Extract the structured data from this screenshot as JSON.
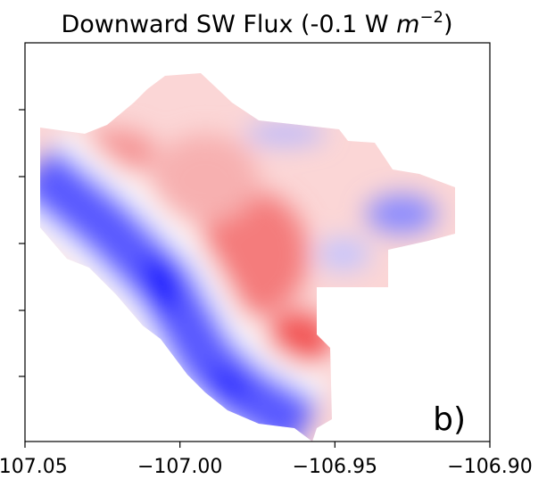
{
  "chart_data": {
    "type": "contour",
    "title": {
      "text": "Downward SW Flux (-0.1 W ",
      "unit": "m",
      "exponent": "−2",
      "close": ")"
    },
    "panel_label": "b)",
    "xlim": [
      -107.05,
      -106.9
    ],
    "xticks": [
      {
        "value": -107.05,
        "label": "−107.05"
      },
      {
        "value": -107.0,
        "label": "−107.00"
      },
      {
        "value": -106.95,
        "label": "−106.95"
      },
      {
        "value": -106.9,
        "label": "−106.90"
      }
    ],
    "colormap": [
      "#1a1aff",
      "#ffffff",
      "#ff2a2a"
    ]
  }
}
